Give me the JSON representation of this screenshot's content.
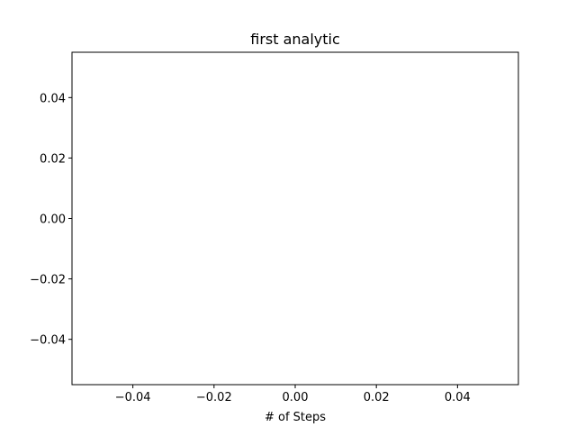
{
  "chart_data": {
    "type": "line",
    "title": "first analytic",
    "xlabel": "# of Steps",
    "ylabel": "",
    "xlim": [
      -0.055,
      0.055
    ],
    "ylim": [
      -0.055,
      0.055
    ],
    "x_ticks": [
      -0.04,
      -0.02,
      0.0,
      0.02,
      0.04
    ],
    "x_tick_labels": [
      "−0.04",
      "−0.02",
      "0.00",
      "0.02",
      "0.04"
    ],
    "y_ticks": [
      -0.04,
      -0.02,
      0.0,
      0.02,
      0.04
    ],
    "y_tick_labels": [
      "−0.04",
      "−0.02",
      "0.00",
      "0.02",
      "0.04"
    ],
    "series": [],
    "grid": false,
    "legend": "none",
    "colors": {
      "background": "#ffffff",
      "axes": "#000000",
      "text": "#000000"
    }
  }
}
